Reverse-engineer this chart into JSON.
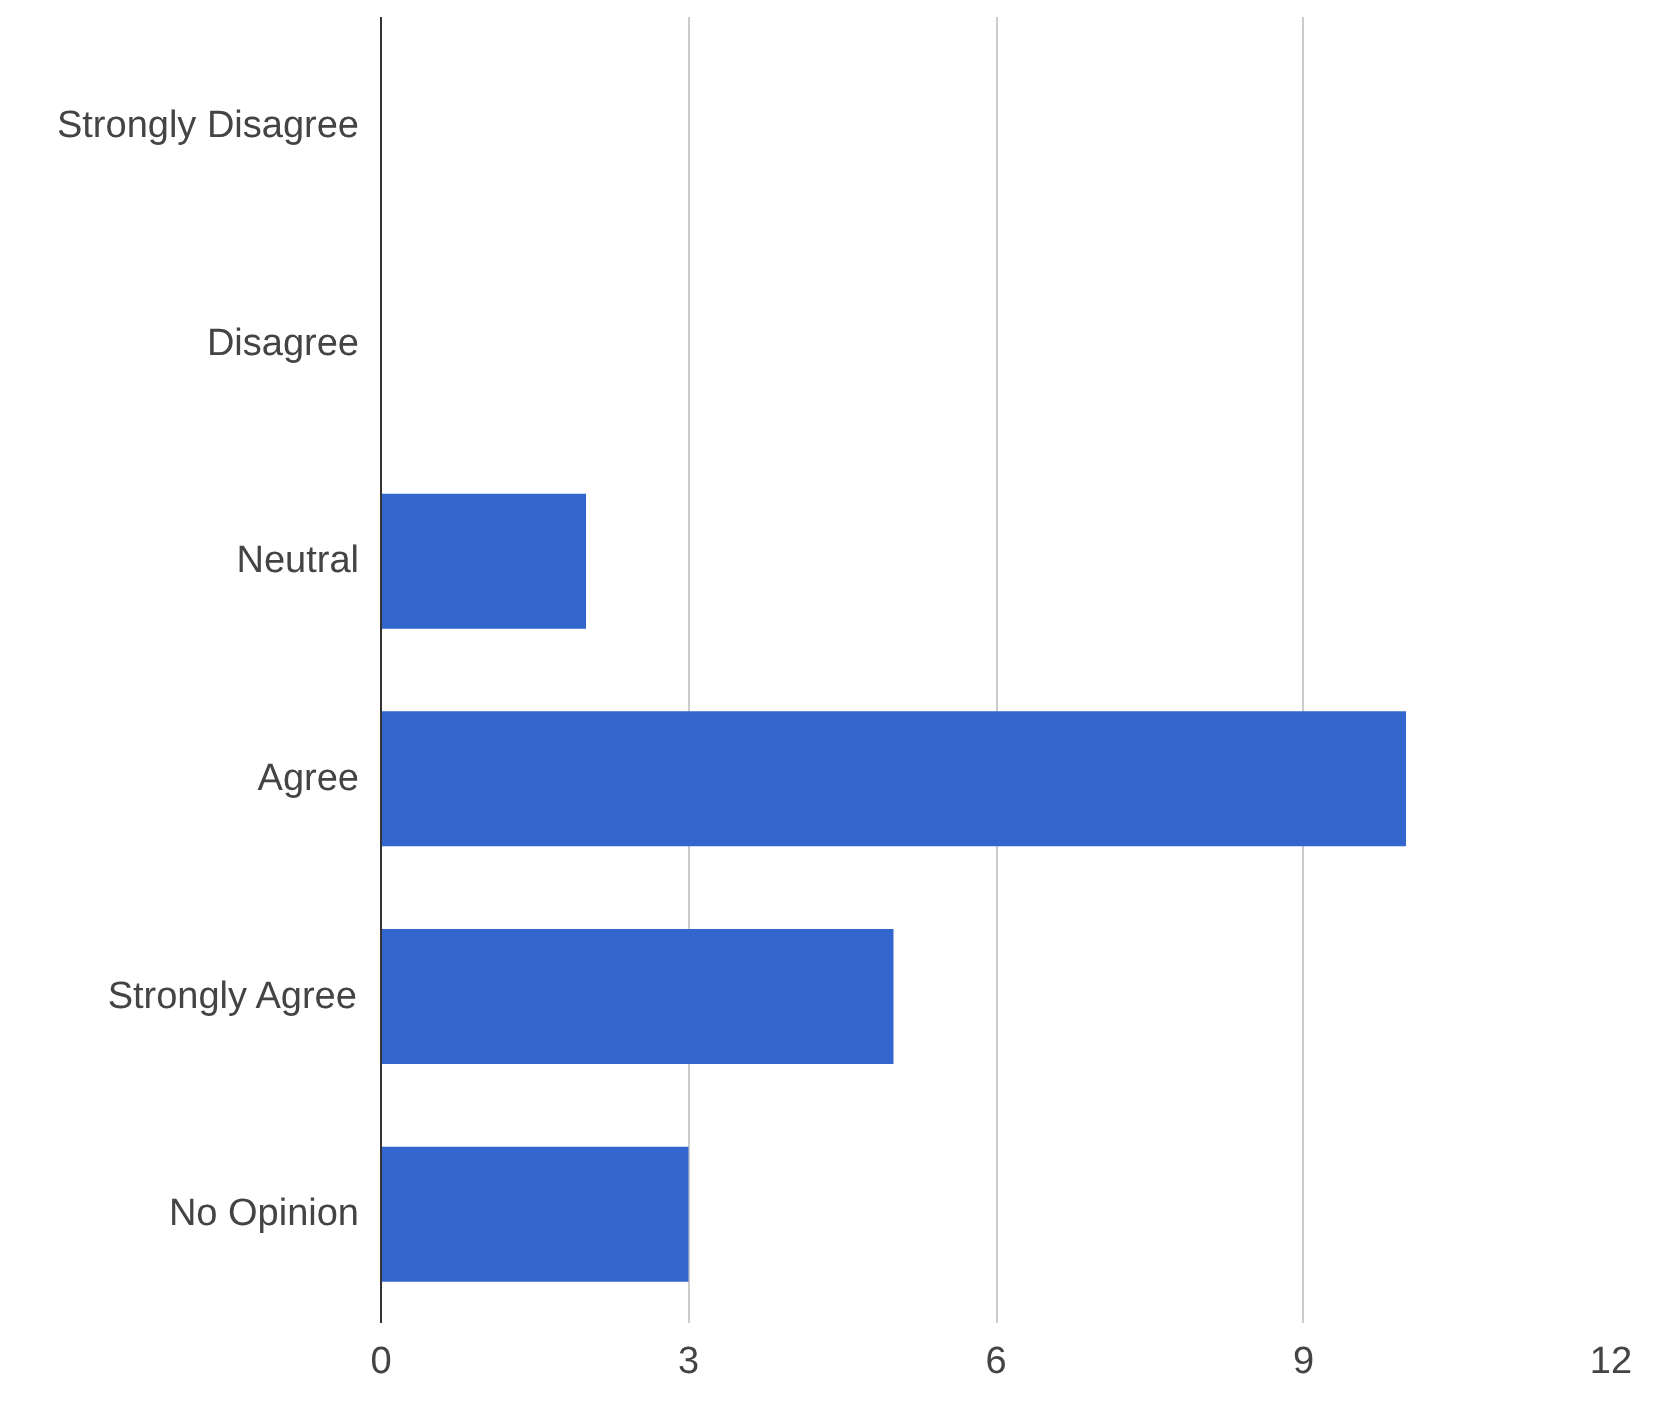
{
  "chart_data": {
    "type": "bar",
    "orientation": "horizontal",
    "categories": [
      "Strongly Disagree",
      "Disagree",
      "Neutral",
      "Agree",
      "Strongly Agree",
      "No Opinion"
    ],
    "values": [
      0,
      0,
      2,
      10,
      5,
      3
    ],
    "color": "#3366cc",
    "xlim": [
      0,
      12
    ],
    "xticks": [
      0,
      3,
      6,
      9,
      12
    ],
    "grid": "x"
  }
}
